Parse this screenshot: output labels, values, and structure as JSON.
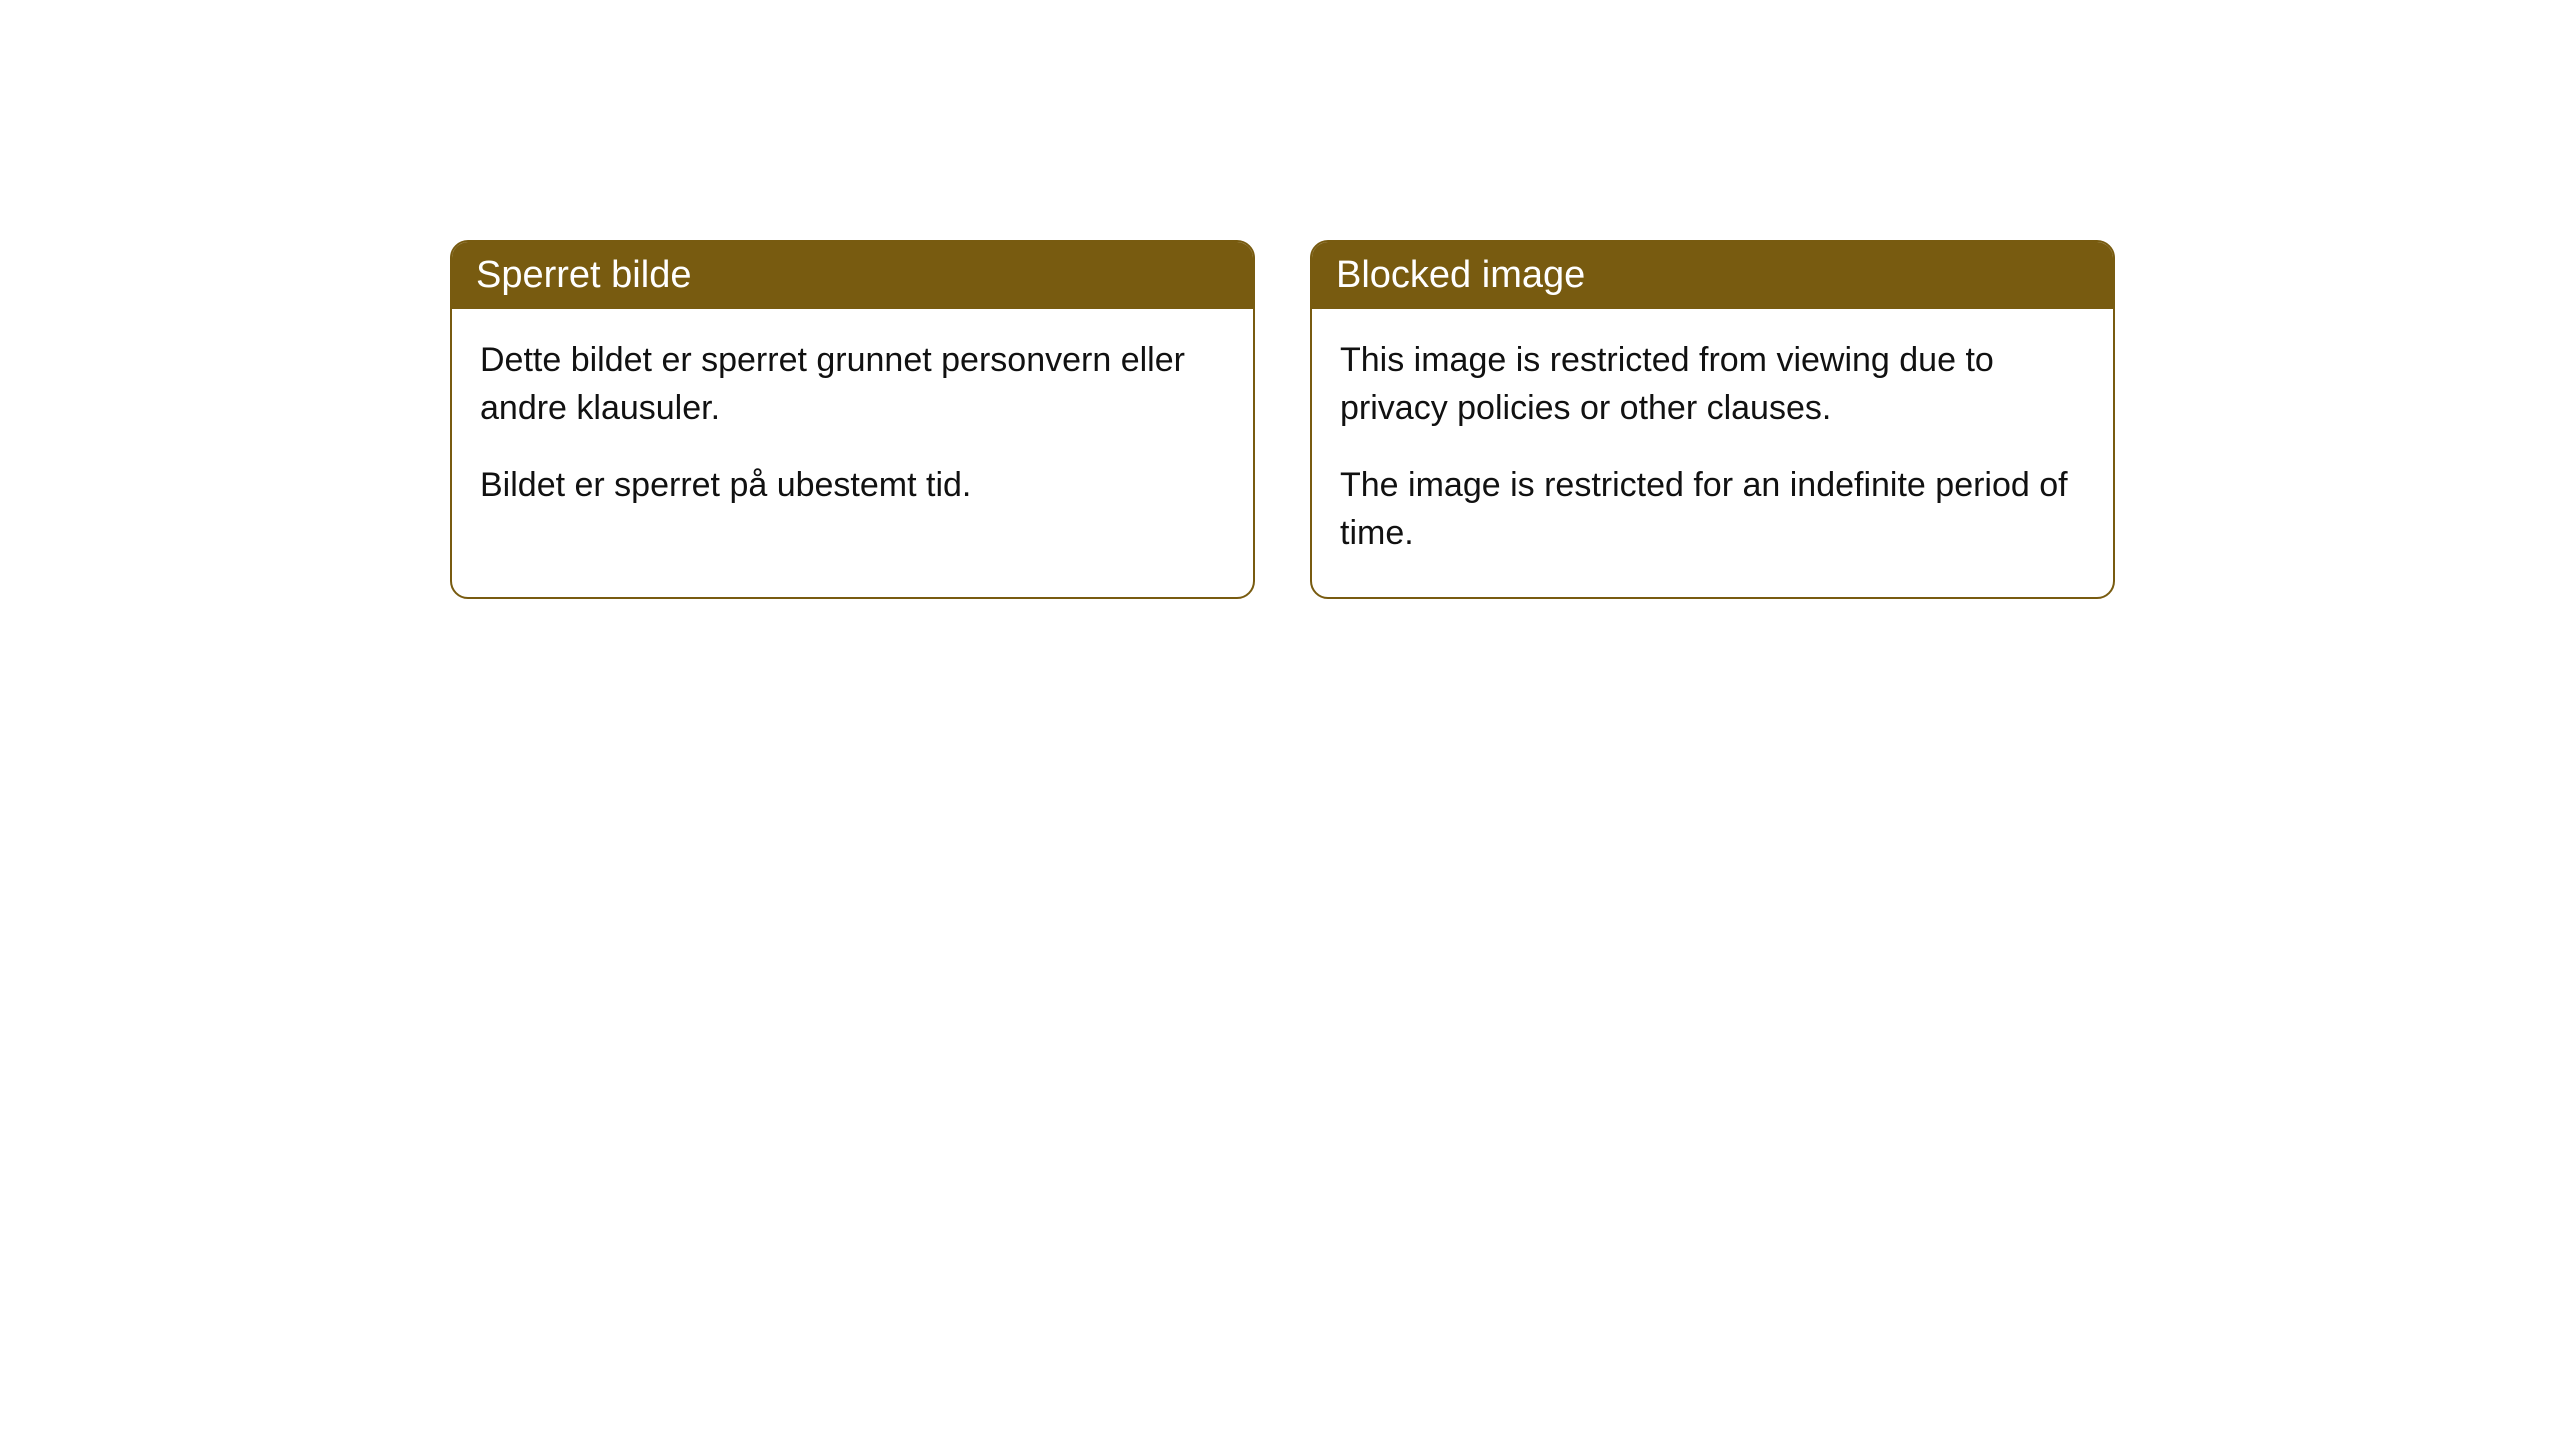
{
  "cards": [
    {
      "title": "Sperret bilde",
      "paragraph1": "Dette bildet er sperret grunnet personvern eller andre klausuler.",
      "paragraph2": "Bildet er sperret på ubestemt tid."
    },
    {
      "title": "Blocked image",
      "paragraph1": "This image is restricted from viewing due to privacy policies or other clauses.",
      "paragraph2": "The image is restricted for an indefinite period of time."
    }
  ],
  "styles": {
    "header_bg_color": "#785b10",
    "header_text_color": "#ffffff",
    "border_color": "#785b10",
    "body_bg_color": "#ffffff",
    "body_text_color": "#111111",
    "border_radius": 18,
    "title_fontsize": 38,
    "body_fontsize": 34
  }
}
